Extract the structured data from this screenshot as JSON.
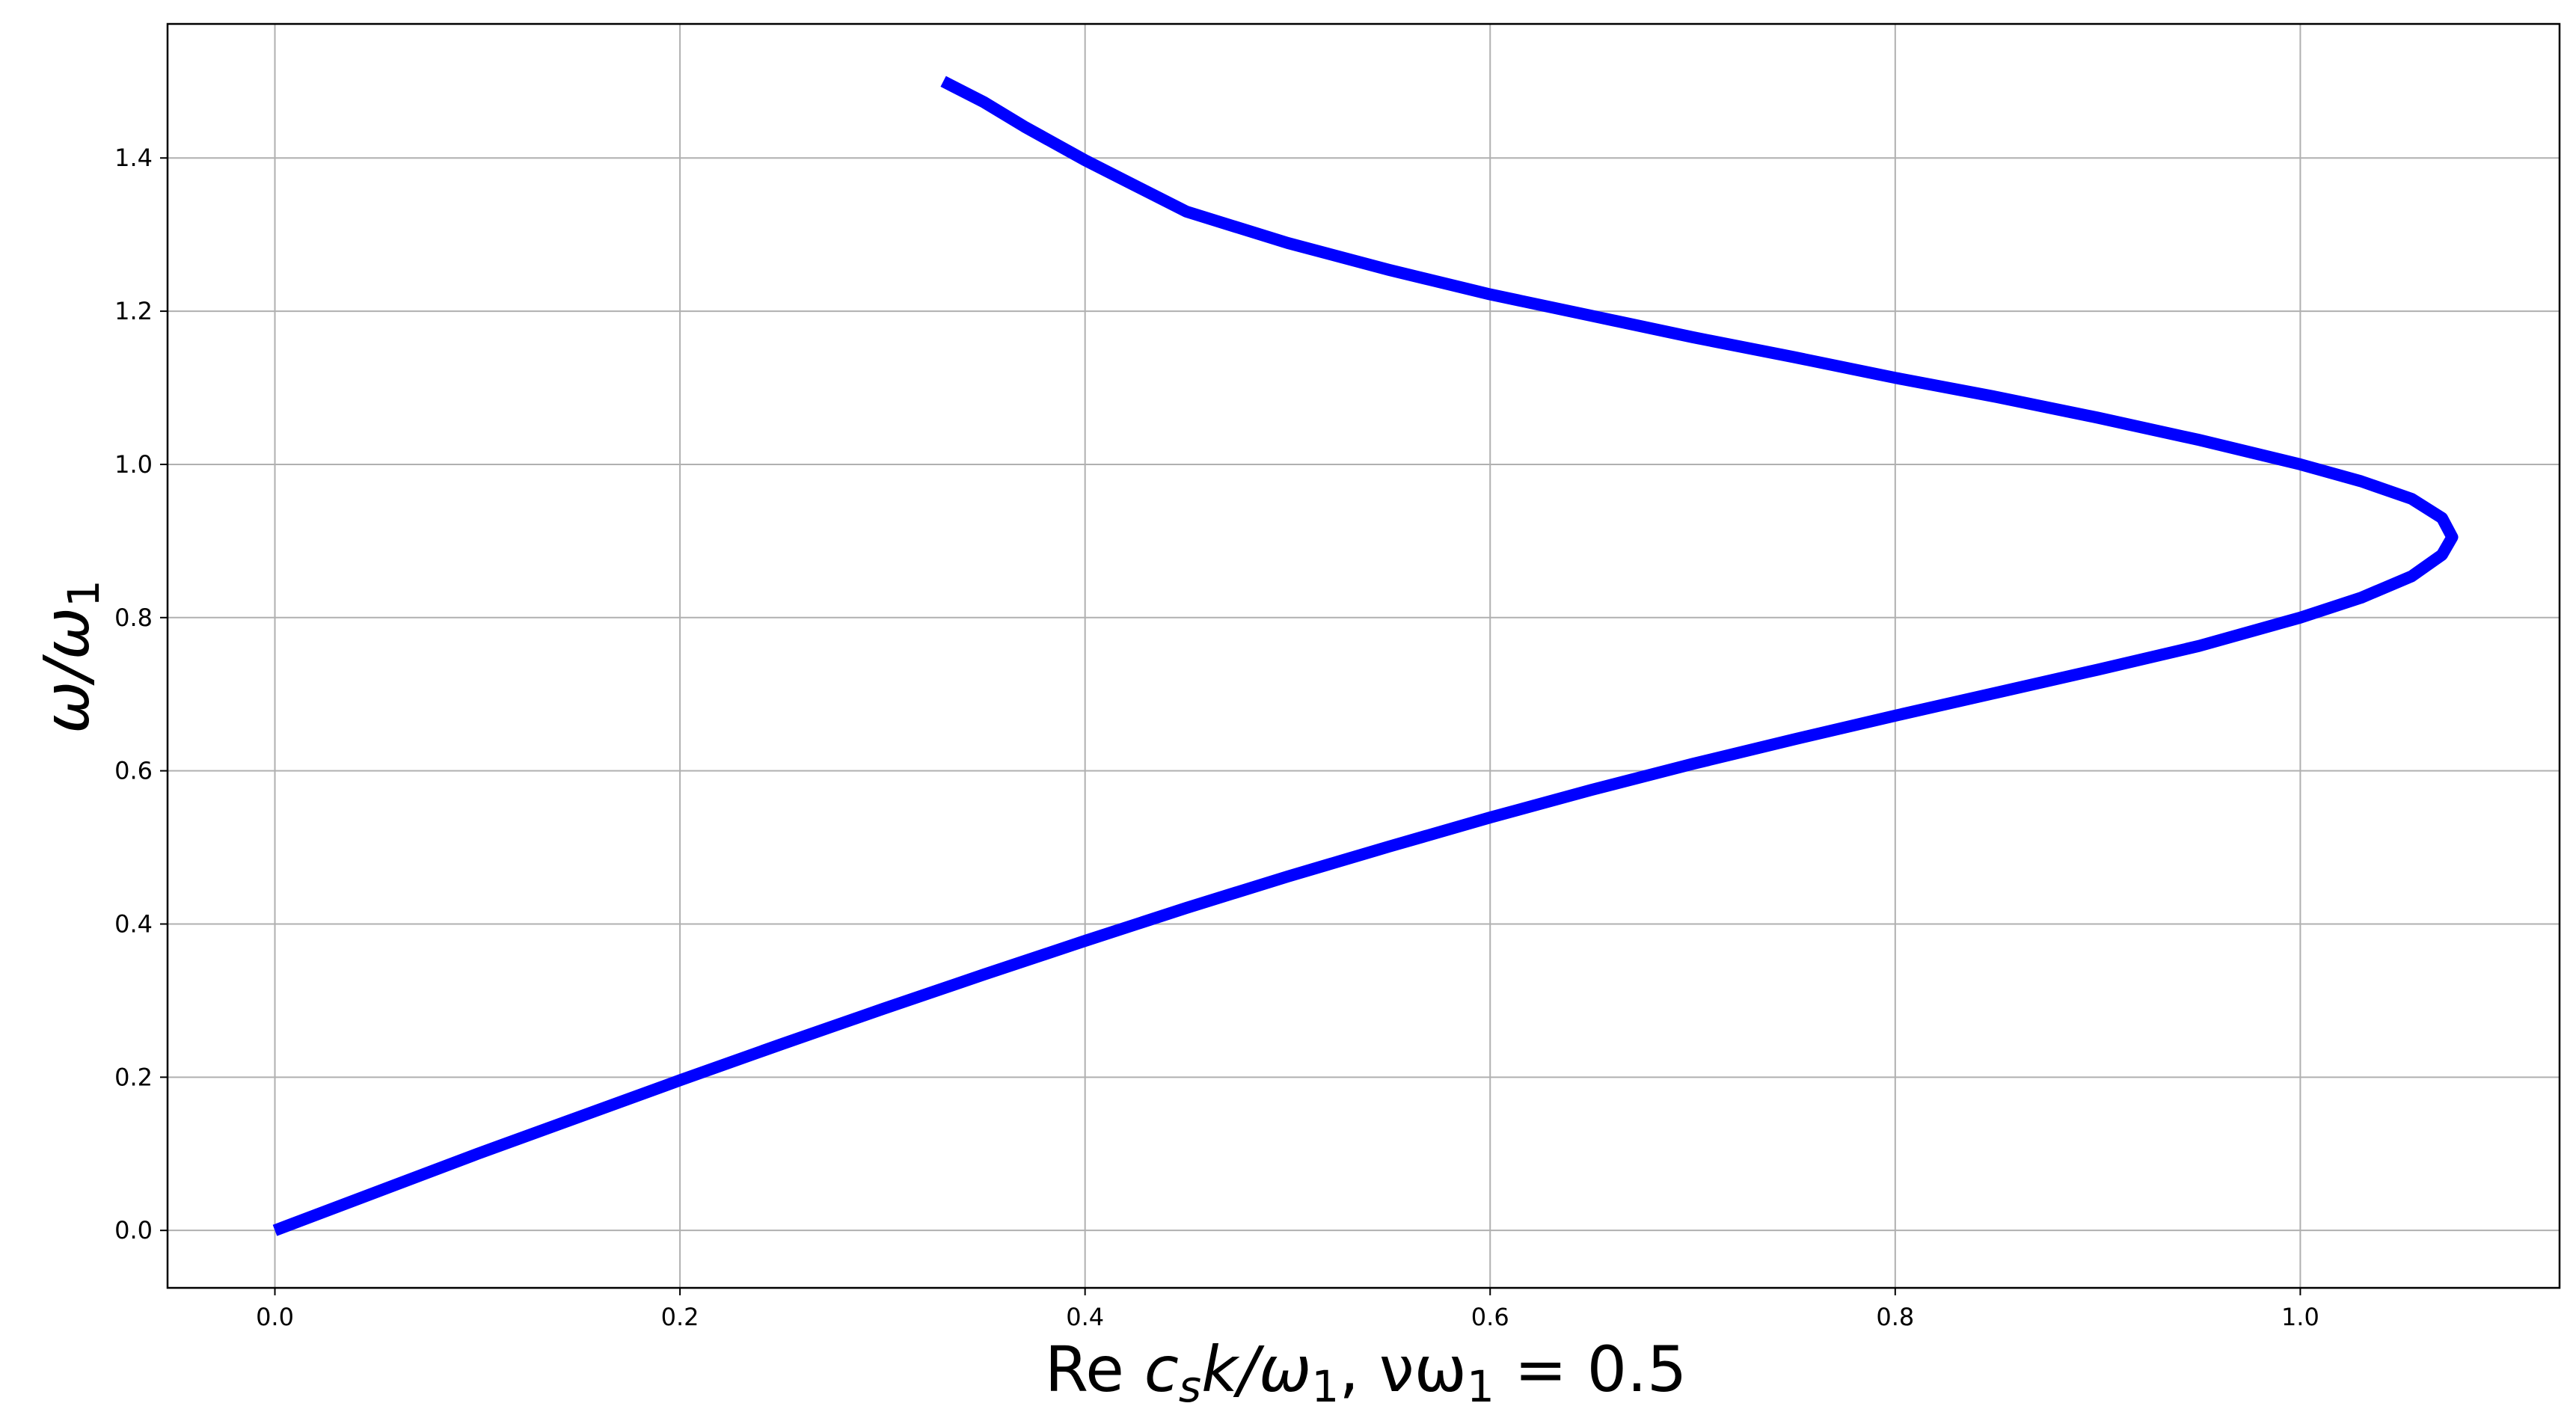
{
  "chart_data": {
    "type": "line",
    "title": "",
    "xlabel_parts": {
      "re": "Re ",
      "c": "c",
      "s": "s",
      "k_over": "k/ω",
      "one_a": "1",
      "sep": ",    νω",
      "one_b": "1",
      "eq": " = 0.5"
    },
    "ylabel_parts": {
      "main": "ω/ω",
      "sub": "1"
    },
    "xlim": [
      -0.053,
      1.128
    ],
    "ylim": [
      -0.075,
      1.575
    ],
    "xticks": [
      "0.0",
      "0.2",
      "0.4",
      "0.6",
      "0.8",
      "1.0"
    ],
    "xtick_values": [
      0.0,
      0.2,
      0.4,
      0.6,
      0.8,
      1.0
    ],
    "yticks": [
      "0.0",
      "0.2",
      "0.4",
      "0.6",
      "0.8",
      "1.0",
      "1.2",
      "1.4"
    ],
    "ytick_values": [
      0.0,
      0.2,
      0.4,
      0.6,
      0.8,
      1.0,
      1.2,
      1.4
    ],
    "grid": true,
    "series": [
      {
        "color": "#0000ff",
        "points": [
          [
            0.0,
            0.0
          ],
          [
            0.05,
            0.05
          ],
          [
            0.1,
            0.1
          ],
          [
            0.15,
            0.148
          ],
          [
            0.2,
            0.196
          ],
          [
            0.25,
            0.243
          ],
          [
            0.3,
            0.289
          ],
          [
            0.35,
            0.334
          ],
          [
            0.4,
            0.378
          ],
          [
            0.45,
            0.421
          ],
          [
            0.5,
            0.462
          ],
          [
            0.55,
            0.501
          ],
          [
            0.6,
            0.539
          ],
          [
            0.65,
            0.575
          ],
          [
            0.7,
            0.609
          ],
          [
            0.75,
            0.641
          ],
          [
            0.8,
            0.672
          ],
          [
            0.85,
            0.702
          ],
          [
            0.9,
            0.732
          ],
          [
            0.95,
            0.763
          ],
          [
            1.0,
            0.8
          ],
          [
            1.03,
            0.826
          ],
          [
            1.055,
            0.854
          ],
          [
            1.07,
            0.882
          ],
          [
            1.075,
            0.905
          ],
          [
            1.07,
            0.93
          ],
          [
            1.055,
            0.955
          ],
          [
            1.03,
            0.978
          ],
          [
            1.0,
            1.0
          ],
          [
            0.95,
            1.032
          ],
          [
            0.9,
            1.061
          ],
          [
            0.85,
            1.088
          ],
          [
            0.8,
            1.113
          ],
          [
            0.75,
            1.14
          ],
          [
            0.7,
            1.166
          ],
          [
            0.65,
            1.194
          ],
          [
            0.6,
            1.222
          ],
          [
            0.55,
            1.254
          ],
          [
            0.5,
            1.289
          ],
          [
            0.45,
            1.33
          ],
          [
            0.4,
            1.397
          ],
          [
            0.37,
            1.441
          ],
          [
            0.35,
            1.473
          ],
          [
            0.33,
            1.5
          ]
        ]
      }
    ]
  }
}
